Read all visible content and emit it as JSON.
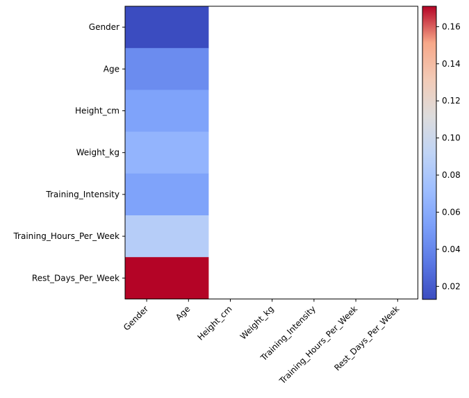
{
  "chart_data": {
    "type": "heatmap",
    "x_categories": [
      "Gender",
      "Age",
      "Height_cm",
      "Weight_kg",
      "Training_Intensity",
      "Training_Hours_Per_Week",
      "Rest_Days_Per_Week"
    ],
    "y_categories": [
      "Gender",
      "Age",
      "Height_cm",
      "Weight_kg",
      "Training_Intensity",
      "Training_Hours_Per_Week",
      "Rest_Days_Per_Week"
    ],
    "columns_filled": [
      "Gender",
      "Age"
    ],
    "values": [
      0.013,
      0.043,
      0.055,
      0.066,
      0.055,
      0.086,
      0.171
    ],
    "colormap": "coolwarm",
    "color_range": [
      0.013,
      0.171
    ],
    "colorbar_ticks": [
      "0.02",
      "0.04",
      "0.06",
      "0.08",
      "0.10",
      "0.12",
      "0.14",
      "0.16"
    ],
    "colorbar_tick_values": [
      0.02,
      0.04,
      0.06,
      0.08,
      0.1,
      0.12,
      0.14,
      0.16
    ],
    "colors": {
      "low": "#3b4cc0",
      "mid": "#dddcdc",
      "high": "#b40426"
    }
  }
}
